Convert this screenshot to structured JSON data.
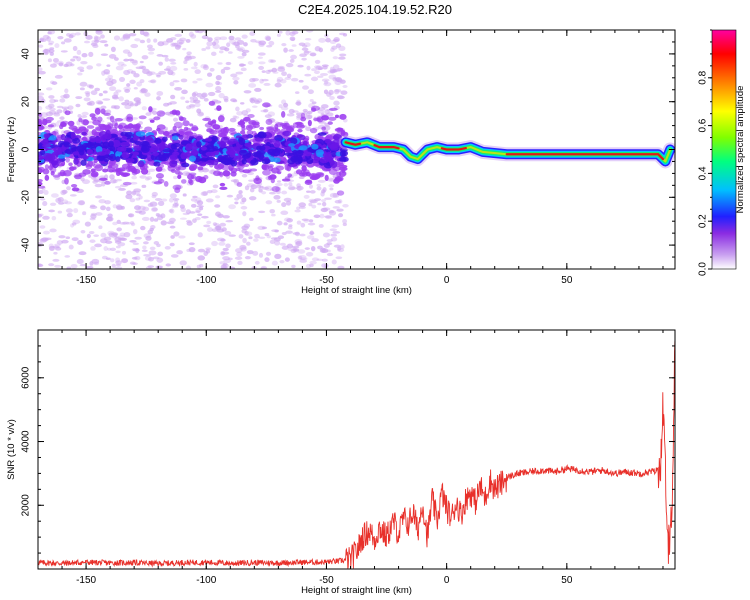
{
  "title": "C2E4.2025.104.19.52.R20",
  "chart_data": [
    {
      "type": "heatmap",
      "title": "",
      "xlabel": "Height of straight line (km)",
      "ylabel": "Frequency (Hz)",
      "xlim": [
        -170,
        95
      ],
      "ylim": [
        -50,
        50
      ],
      "x_ticks": [
        -150,
        -100,
        -50,
        0,
        50
      ],
      "y_ticks": [
        -40,
        -20,
        0,
        20,
        40
      ],
      "colorbar": {
        "label": "Normalized spectral amplitude",
        "range": [
          0,
          1
        ],
        "ticks": [
          0.0,
          0.2,
          0.4,
          0.6,
          0.8
        ],
        "colors": [
          "#ffffff",
          "#c9a0f0",
          "#8a2be2",
          "#2020ff",
          "#00bfff",
          "#00ff80",
          "#80ff00",
          "#ffff00",
          "#ff8000",
          "#ff0000",
          "#ff00a0"
        ]
      },
      "description_points": {
        "noise_band_x_range": [
          -170,
          -42
        ],
        "signal_line": [
          {
            "x": -42,
            "y": 3
          },
          {
            "x": -38,
            "y": 2
          },
          {
            "x": -33,
            "y": 3
          },
          {
            "x": -28,
            "y": 1
          },
          {
            "x": -22,
            "y": 1
          },
          {
            "x": -18,
            "y": 0
          },
          {
            "x": -15,
            "y": -3
          },
          {
            "x": -12,
            "y": -4
          },
          {
            "x": -8,
            "y": 0
          },
          {
            "x": -4,
            "y": 1
          },
          {
            "x": 0,
            "y": 0
          },
          {
            "x": 5,
            "y": 0
          },
          {
            "x": 10,
            "y": 1
          },
          {
            "x": 15,
            "y": -1
          },
          {
            "x": 25,
            "y": -2
          },
          {
            "x": 50,
            "y": -2
          },
          {
            "x": 75,
            "y": -2
          },
          {
            "x": 88,
            "y": -2
          },
          {
            "x": 91,
            "y": -5
          },
          {
            "x": 93,
            "y": 0
          }
        ]
      }
    },
    {
      "type": "line",
      "title": "",
      "xlabel": "Height of straight line (km)",
      "ylabel": "SNR (10 * v/v)",
      "xlim": [
        -170,
        95
      ],
      "ylim": [
        0,
        7500
      ],
      "x_ticks": [
        -150,
        -100,
        -50,
        0,
        50
      ],
      "y_ticks": [
        2000,
        4000,
        6000
      ],
      "line_color": "#e8302a",
      "series": [
        {
          "x": [
            -170,
            -160,
            -150,
            -140,
            -130,
            -120,
            -110,
            -100,
            -90,
            -80,
            -70,
            -60,
            -50,
            -45,
            -40,
            -37,
            -35,
            -32,
            -30,
            -28,
            -25,
            -22,
            -20,
            -18,
            -16,
            -14,
            -12,
            -10,
            -8,
            -6,
            -4,
            -2,
            0,
            2,
            4,
            6,
            8,
            10,
            12,
            14,
            16,
            18,
            20,
            23,
            26,
            30,
            35,
            40,
            45,
            50,
            55,
            60,
            65,
            70,
            75,
            80,
            85,
            88,
            89,
            90,
            91,
            92,
            93,
            94,
            95
          ],
          "values": [
            200,
            180,
            210,
            190,
            200,
            170,
            200,
            210,
            180,
            200,
            190,
            210,
            220,
            250,
            300,
            600,
            1000,
            1200,
            900,
            1300,
            1000,
            1500,
            1100,
            1600,
            1400,
            1800,
            1200,
            2100,
            1000,
            2200,
            1500,
            2400,
            1900,
            1600,
            2100,
            1700,
            2200,
            2400,
            2100,
            2600,
            2200,
            2800,
            2500,
            2700,
            2900,
            3000,
            3050,
            3100,
            3050,
            3150,
            3100,
            3050,
            3100,
            3000,
            3050,
            3000,
            3050,
            3100,
            3300,
            5200,
            3000,
            500,
            1200,
            2500,
            7400
          ]
        }
      ]
    }
  ]
}
